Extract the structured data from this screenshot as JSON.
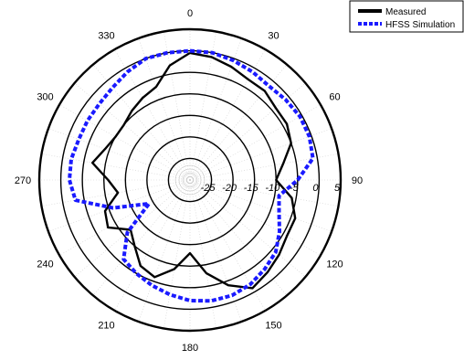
{
  "chart_data": {
    "type": "line",
    "subtype": "polar",
    "angle_unit": "degrees",
    "angle_direction": "clockwise",
    "angle_zero": "top",
    "angle_ticks": [
      "0",
      "30",
      "60",
      "90",
      "120",
      "150",
      "180",
      "210",
      "240",
      "270",
      "300",
      "330"
    ],
    "radial_ticks": [
      "-25",
      "-20",
      "-15",
      "-10",
      "-5",
      "0",
      "5"
    ],
    "rlim": [
      -30,
      5
    ],
    "grid": true,
    "legend": "top-right",
    "colors": {
      "measured": "#000000",
      "simulation": "#1a1aff"
    },
    "series": [
      {
        "name": "Measured",
        "theta": [
          0,
          10,
          20,
          30,
          40,
          50,
          60,
          70,
          80,
          90,
          100,
          110,
          120,
          130,
          140,
          150,
          160,
          170,
          180,
          190,
          200,
          210,
          220,
          230,
          240,
          250,
          260,
          270,
          280,
          290,
          300,
          310,
          320,
          330,
          340,
          350,
          360
        ],
        "r": [
          -0.5,
          -1,
          -2,
          -3,
          -3,
          -4,
          -4,
          -5,
          -8,
          -10,
          -6,
          -4,
          -4,
          -3,
          -2,
          -1,
          -4,
          -8,
          -13,
          -9,
          -6,
          -7,
          -10,
          -12,
          -8,
          -9,
          -13,
          -11,
          -7,
          -9,
          -10,
          -10,
          -9,
          -8,
          -7,
          -3,
          -0.5
        ]
      },
      {
        "name": "HFSS Simulation",
        "theta": [
          0,
          10,
          20,
          30,
          40,
          50,
          60,
          70,
          80,
          90,
          100,
          110,
          120,
          130,
          140,
          150,
          160,
          170,
          180,
          190,
          200,
          210,
          220,
          230,
          240,
          250,
          260,
          270,
          280,
          290,
          300,
          310,
          320,
          330,
          340,
          350,
          360
        ],
        "r": [
          0,
          0,
          -0.5,
          -1,
          -1.5,
          -1,
          -0.5,
          -0.5,
          -1,
          -5,
          -9,
          -8,
          -6,
          -4,
          -3,
          -2,
          -1.5,
          -1.5,
          -2,
          -3,
          -4,
          -5,
          -6,
          -11,
          -19,
          -11,
          -3,
          -2,
          -2,
          -2.5,
          -2.5,
          -2.5,
          -2,
          -1,
          0,
          0,
          0
        ]
      }
    ]
  }
}
